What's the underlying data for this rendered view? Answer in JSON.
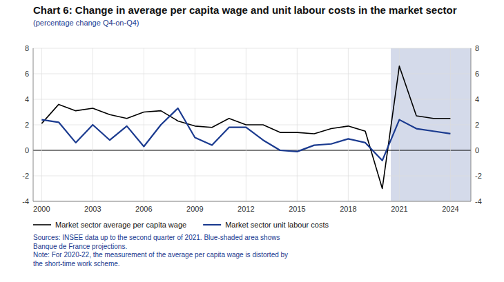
{
  "chart_data": {
    "type": "line",
    "title": "Chart 6: Change in average per capita wage and unit labour costs in the market sector",
    "subtitle": "(percentage change Q4-on-Q4)",
    "annotations": [
      "Sources: INSEE data up to the second quarter of 2021. Blue-shaded area shows",
      "Banque de France projections.",
      "Note: For 2020-22, the measurement of the average per capita wage is distorted by",
      "the short-time work scheme."
    ],
    "x": [
      2000,
      2001,
      2002,
      2003,
      2004,
      2005,
      2006,
      2007,
      2008,
      2009,
      2010,
      2011,
      2012,
      2013,
      2014,
      2015,
      2016,
      2017,
      2018,
      2019,
      2020,
      2021,
      2022,
      2023,
      2024
    ],
    "series": [
      {
        "name": "Market sector average per capita wage",
        "color": "#000000",
        "values": [
          2.1,
          3.6,
          3.1,
          3.3,
          2.8,
          2.5,
          3.0,
          3.1,
          2.3,
          1.9,
          1.8,
          2.5,
          2.0,
          2.0,
          1.4,
          1.4,
          1.3,
          1.7,
          1.9,
          1.5,
          -3.0,
          6.6,
          2.7,
          2.5,
          2.5
        ]
      },
      {
        "name": "Market sector unit labour costs",
        "color": "#1a3a8f",
        "values": [
          2.4,
          2.2,
          0.6,
          2.0,
          0.8,
          1.9,
          0.3,
          2.0,
          3.3,
          1.0,
          0.4,
          1.8,
          1.8,
          0.8,
          0.0,
          -0.1,
          0.4,
          0.5,
          0.9,
          0.6,
          -0.8,
          2.4,
          1.7,
          1.5,
          1.3
        ]
      }
    ],
    "shade": {
      "x": [
        2020.5,
        2025.2
      ],
      "color": "#d4daea"
    },
    "xlim": [
      1999.5,
      2025.2
    ],
    "xticks": [
      2000,
      2003,
      2006,
      2009,
      2012,
      2015,
      2018,
      2021,
      2024
    ],
    "ylim": [
      -4,
      8
    ],
    "yticks": [
      -4,
      -2,
      0,
      2,
      4,
      6,
      8
    ],
    "y2lim": [
      -4,
      8
    ],
    "y2ticks": [
      -4,
      -2,
      0,
      2,
      4,
      6,
      8
    ],
    "grid": true,
    "legend": "bottom"
  }
}
